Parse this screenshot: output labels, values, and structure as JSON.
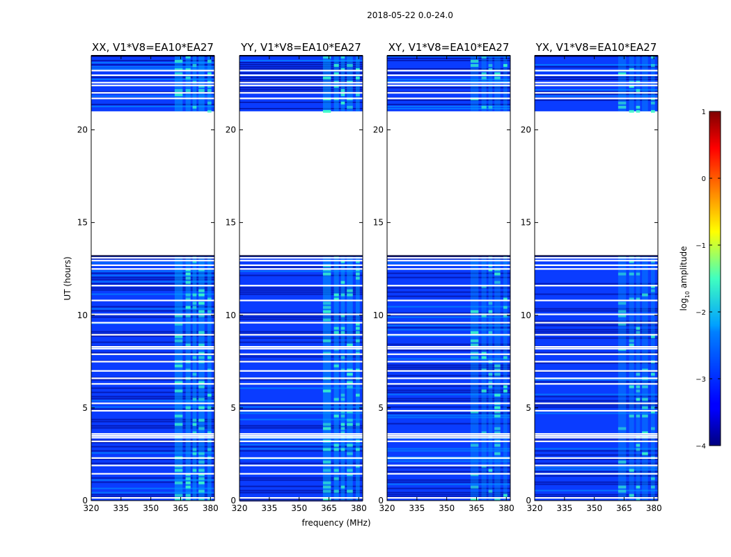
{
  "figure_title": "2018-05-22 0.0-24.0",
  "colors": {
    "background": "#00008f",
    "band_dark": "#00007f",
    "band_base": "#0a3cff",
    "band_mid": "#00a0ff",
    "band_hot": "#3cffc8",
    "flagged": "#ffffff"
  },
  "chart_data": {
    "type": "heatmap",
    "xlabel": "frequency (MHz)",
    "ylabel": "UT (hours)",
    "xlim": [
      320,
      382
    ],
    "ylim": [
      0,
      24
    ],
    "x_ticks": [
      320,
      335,
      350,
      365,
      380
    ],
    "y_ticks": [
      0,
      5,
      10,
      15,
      20
    ],
    "panels": [
      {
        "title": "XX, V1*V8=EA10*EA27",
        "rfi_strength": "strong"
      },
      {
        "title": "YY, V1*V8=EA10*EA27",
        "rfi_strength": "strong"
      },
      {
        "title": "XY, V1*V8=EA10*EA27",
        "rfi_strength": "medium"
      },
      {
        "title": "YX, V1*V8=EA10*EA27",
        "rfi_strength": "medium"
      }
    ],
    "data_segments_hours": [
      [
        0,
        13.2
      ],
      [
        21.0,
        24.0
      ]
    ],
    "flagged_rows_hours": [
      0.15,
      1.45,
      1.9,
      2.3,
      3.2,
      3.4,
      3.5,
      3.6,
      4.85,
      5.25,
      6.3,
      6.6,
      7.0,
      7.5,
      7.9,
      8.2,
      8.3,
      8.95,
      9.6,
      10.05,
      10.8,
      11.6,
      12.5,
      12.7,
      12.95,
      13.1,
      21.7,
      22.0,
      22.4,
      22.55,
      22.95,
      23.2
    ],
    "rfi_channels_mhz": [
      [
        362,
        366
      ],
      [
        367.5,
        370
      ],
      [
        371,
        373
      ],
      [
        374,
        377
      ],
      [
        378.5,
        380.5
      ]
    ],
    "colorbar": {
      "label_parts": [
        "log",
        "10",
        " amplitude"
      ],
      "min": -4,
      "max": 1,
      "ticks": [
        1,
        0,
        -1,
        -2,
        -3,
        -4
      ],
      "tick_labels": [
        "1",
        "0",
        "−1",
        "−2",
        "−3",
        "−4"
      ]
    }
  }
}
